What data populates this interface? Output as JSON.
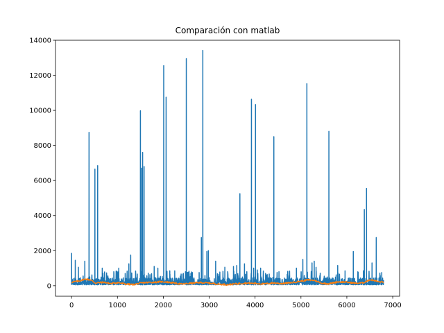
{
  "chart_data": {
    "type": "line",
    "title": "Comparación con matlab",
    "xlabel": "",
    "ylabel": "",
    "xlim": [
      -350,
      7150
    ],
    "ylim": [
      -600,
      14000
    ],
    "x_ticks": [
      0,
      1000,
      2000,
      3000,
      4000,
      5000,
      6000,
      7000
    ],
    "y_ticks": [
      0,
      2000,
      4000,
      6000,
      8000,
      10000,
      12000,
      14000
    ],
    "grid": false,
    "legend": "none",
    "series": [
      {
        "color": "#1f77b4",
        "baseline_range": [
          50,
          450
        ],
        "n_points": 6800,
        "spikes": [
          [
            0,
            1850
          ],
          [
            80,
            1450
          ],
          [
            150,
            1050
          ],
          [
            290,
            1400
          ],
          [
            380,
            8750
          ],
          [
            510,
            6650
          ],
          [
            570,
            6850
          ],
          [
            670,
            1000
          ],
          [
            920,
            800
          ],
          [
            1030,
            1000
          ],
          [
            1170,
            700
          ],
          [
            1250,
            1250
          ],
          [
            1290,
            1750
          ],
          [
            1500,
            9980
          ],
          [
            1530,
            6700
          ],
          [
            1550,
            7600
          ],
          [
            1580,
            6800
          ],
          [
            1800,
            1100
          ],
          [
            1880,
            1000
          ],
          [
            2010,
            12550
          ],
          [
            2060,
            10750
          ],
          [
            2140,
            850
          ],
          [
            2250,
            850
          ],
          [
            2500,
            12950
          ],
          [
            2600,
            700
          ],
          [
            2780,
            750
          ],
          [
            2830,
            2750
          ],
          [
            2860,
            13420
          ],
          [
            2950,
            1950
          ],
          [
            2980,
            2000
          ],
          [
            3140,
            1400
          ],
          [
            3340,
            1050
          ],
          [
            3530,
            1100
          ],
          [
            3600,
            1150
          ],
          [
            3670,
            5250
          ],
          [
            3770,
            1250
          ],
          [
            3920,
            10630
          ],
          [
            3970,
            1000
          ],
          [
            4010,
            10330
          ],
          [
            4050,
            900
          ],
          [
            4120,
            1000
          ],
          [
            4230,
            700
          ],
          [
            4410,
            8500
          ],
          [
            4520,
            800
          ],
          [
            4700,
            650
          ],
          [
            4900,
            1000
          ],
          [
            5040,
            1500
          ],
          [
            5130,
            11520
          ],
          [
            5240,
            1300
          ],
          [
            5290,
            1400
          ],
          [
            5330,
            1050
          ],
          [
            5610,
            8800
          ],
          [
            5800,
            1150
          ],
          [
            5960,
            850
          ],
          [
            6140,
            1950
          ],
          [
            6360,
            850
          ],
          [
            6380,
            4350
          ],
          [
            6430,
            5550
          ],
          [
            6550,
            1300
          ],
          [
            6640,
            2750
          ],
          [
            6760,
            750
          ]
        ]
      },
      {
        "color": "#ff7f0e",
        "points": [
          [
            0,
            200
          ],
          [
            150,
            260
          ],
          [
            300,
            380
          ],
          [
            420,
            330
          ],
          [
            520,
            150
          ],
          [
            700,
            200
          ],
          [
            850,
            120
          ],
          [
            1000,
            180
          ],
          [
            1200,
            90
          ],
          [
            1350,
            60
          ],
          [
            1450,
            120
          ],
          [
            1600,
            180
          ],
          [
            1800,
            200
          ],
          [
            2000,
            230
          ],
          [
            2200,
            170
          ],
          [
            2400,
            90
          ],
          [
            2600,
            140
          ],
          [
            2800,
            180
          ],
          [
            3000,
            150
          ],
          [
            3200,
            90
          ],
          [
            3400,
            60
          ],
          [
            3600,
            110
          ],
          [
            3800,
            150
          ],
          [
            4000,
            130
          ],
          [
            4200,
            100
          ],
          [
            4400,
            160
          ],
          [
            4600,
            120
          ],
          [
            4800,
            180
          ],
          [
            5000,
            260
          ],
          [
            5150,
            330
          ],
          [
            5300,
            300
          ],
          [
            5450,
            140
          ],
          [
            5600,
            110
          ],
          [
            5800,
            220
          ],
          [
            6000,
            200
          ],
          [
            6200,
            140
          ],
          [
            6350,
            160
          ],
          [
            6500,
            340
          ],
          [
            6600,
            300
          ],
          [
            6700,
            210
          ],
          [
            6800,
            220
          ]
        ]
      }
    ]
  }
}
